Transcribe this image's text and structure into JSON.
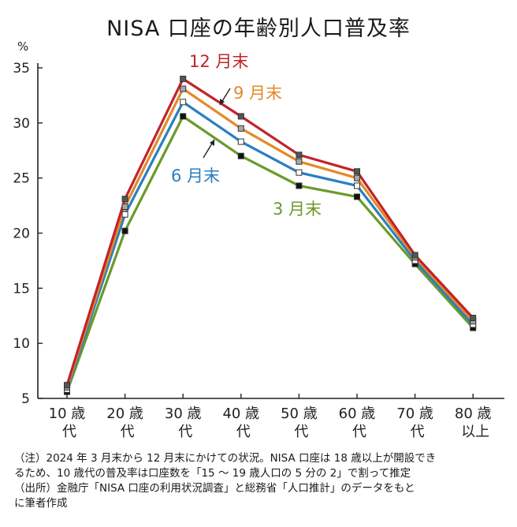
{
  "chart_data": {
    "type": "line",
    "title": "NISA 口座の年齢別人口普及率",
    "y_unit": "%",
    "ylim": [
      5,
      35
    ],
    "yticks": [
      5,
      10,
      15,
      20,
      25,
      30,
      35
    ],
    "categories": [
      {
        "line1": "10 歳",
        "line2": "代"
      },
      {
        "line1": "20 歳",
        "line2": "代"
      },
      {
        "line1": "30 歳",
        "line2": "代"
      },
      {
        "line1": "40 歳",
        "line2": "代"
      },
      {
        "line1": "50 歳",
        "line2": "代"
      },
      {
        "line1": "60 歳",
        "line2": "代"
      },
      {
        "line1": "70 歳",
        "line2": "代"
      },
      {
        "line1": "80 歳",
        "line2": "以上"
      }
    ],
    "series": [
      {
        "name": "3 月末",
        "color": "#6a9a2a",
        "values": [
          5.6,
          20.2,
          30.6,
          27.0,
          24.3,
          23.3,
          17.2,
          11.4
        ]
      },
      {
        "name": "6 月末",
        "color": "#2a7fbf",
        "values": [
          5.8,
          21.7,
          31.9,
          28.3,
          25.5,
          24.3,
          17.5,
          11.7
        ]
      },
      {
        "name": "9 月末",
        "color": "#e48a2a",
        "values": [
          6.0,
          22.4,
          33.1,
          29.5,
          26.5,
          25.0,
          17.8,
          12.0
        ]
      },
      {
        "name": "12 月末",
        "color": "#c0242a",
        "values": [
          6.2,
          23.1,
          34.0,
          30.6,
          27.1,
          25.6,
          18.0,
          12.3
        ]
      }
    ],
    "grid": false,
    "legend": "inline labels"
  },
  "notes": [
    "（注）2024 年 3 月末から 12 月末にかけての状況。NISA 口座は 18 歳以上が開設でき",
    "るため、10 歳代の普及率は口座数を「15 ～ 19 歳人口の 5 分の 2」で割って推定",
    "（出所）金融庁「NISA 口座の利用状況調査」と総務省「人口推計」のデータをもと",
    "に筆者作成"
  ]
}
